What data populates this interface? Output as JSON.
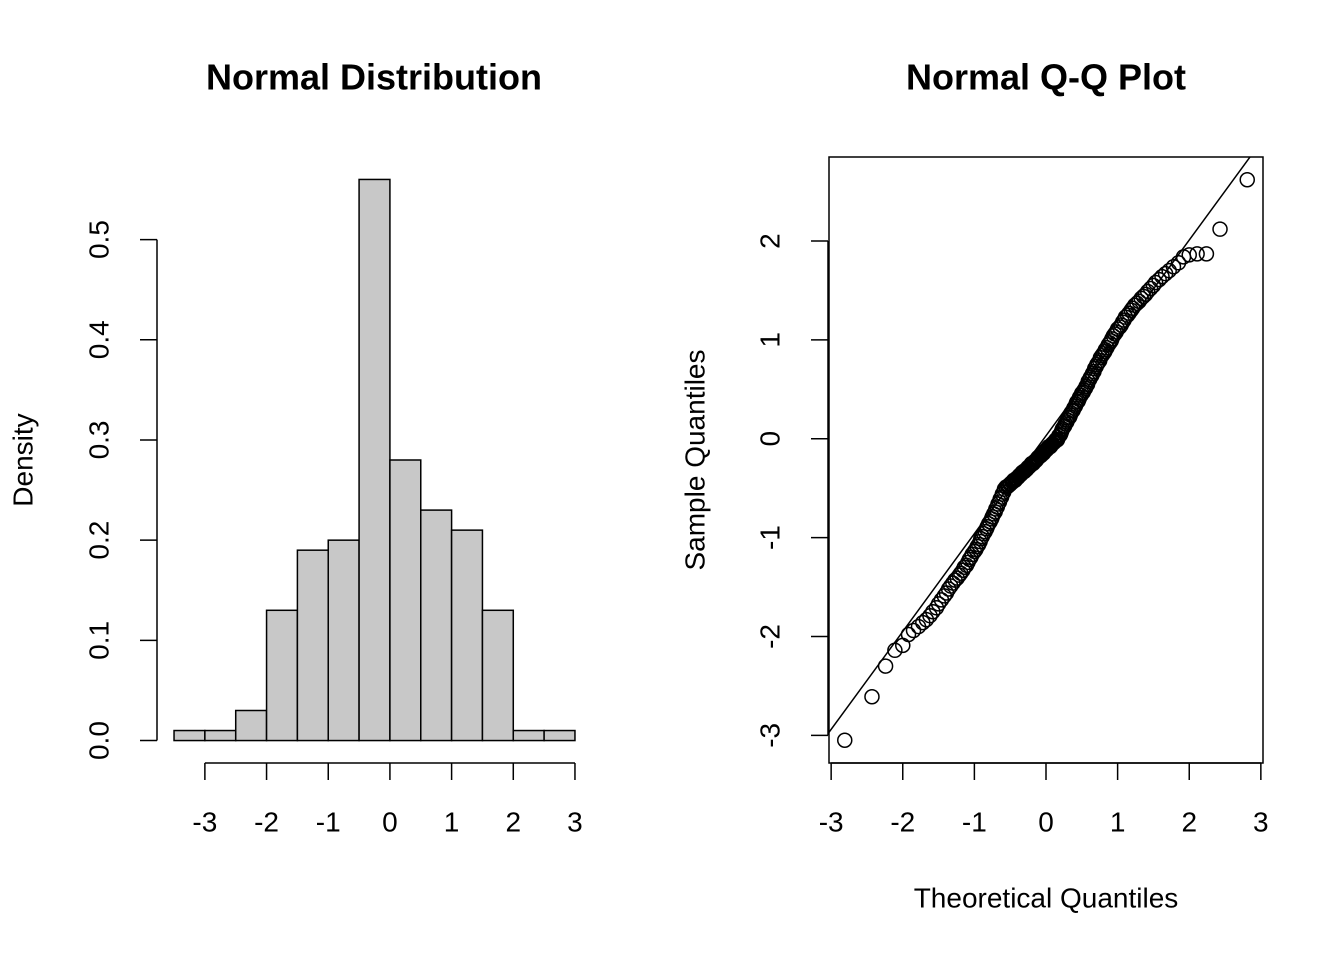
{
  "chart_data": [
    {
      "type": "histogram",
      "title": "Normal Distribution",
      "ylabel": "Density",
      "bins": [
        -3.5,
        -3,
        -2.5,
        -2,
        -1.5,
        -1,
        -0.5,
        0,
        0.5,
        1,
        1.5,
        2,
        2.5,
        3
      ],
      "values": [
        0.01,
        0.01,
        0.03,
        0.13,
        0.19,
        0.2,
        0.56,
        0.28,
        0.23,
        0.21,
        0.13,
        0.01,
        0.01
      ],
      "color": "#c8c8c8",
      "xlim": [
        -3.76,
        3.26
      ],
      "ylim": [
        -0.0224,
        0.5824
      ],
      "xticks": [
        -3,
        -2,
        -1,
        0,
        1,
        2,
        3
      ],
      "yticks": [
        {
          "value": 0,
          "label": "0.0"
        },
        0.1,
        0.2,
        0.3,
        0.4,
        0.5
      ]
    },
    {
      "type": "scatter",
      "title": "Normal Q-Q Plot",
      "xlabel": "Theoretical Quantiles",
      "ylabel": "Sample Quantiles",
      "x": [
        -2.81,
        -2.43,
        -2.24,
        -2.11,
        -2.0,
        -1.92,
        -1.85,
        -1.78,
        -1.72,
        -1.67,
        -1.62,
        -1.58,
        -1.53,
        -1.5,
        -1.46,
        -1.42,
        -1.39,
        -1.36,
        -1.33,
        -1.3,
        -1.27,
        -1.24,
        -1.21,
        -1.19,
        -1.16,
        -1.14,
        -1.11,
        -1.09,
        -1.07,
        -1.05,
        -1.03,
        -1.0,
        -0.98,
        -0.96,
        -0.94,
        -0.92,
        -0.91,
        -0.89,
        -0.87,
        -0.85,
        -0.83,
        -0.82,
        -0.8,
        -0.78,
        -0.76,
        -0.75,
        -0.73,
        -0.71,
        -0.7,
        -0.68,
        -0.67,
        -0.65,
        -0.64,
        -0.62,
        -0.61,
        -0.59,
        -0.58,
        -0.56,
        -0.55,
        -0.53,
        -0.52,
        -0.5,
        -0.49,
        -0.47,
        -0.46,
        -0.45,
        -0.43,
        -0.42,
        -0.41,
        -0.39,
        -0.38,
        -0.37,
        -0.35,
        -0.34,
        -0.33,
        -0.31,
        -0.3,
        -0.29,
        -0.27,
        -0.26,
        -0.25,
        -0.23,
        -0.22,
        -0.21,
        -0.2,
        -0.18,
        -0.17,
        -0.16,
        -0.14,
        -0.13,
        -0.12,
        -0.11,
        -0.09,
        -0.08,
        -0.07,
        -0.06,
        -0.04,
        -0.03,
        -0.02,
        -0.01,
        0.01,
        0.02,
        0.03,
        0.04,
        0.06,
        0.07,
        0.08,
        0.09,
        0.11,
        0.12,
        0.13,
        0.14,
        0.16,
        0.17,
        0.18,
        0.2,
        0.21,
        0.22,
        0.23,
        0.25,
        0.26,
        0.27,
        0.29,
        0.3,
        0.31,
        0.33,
        0.34,
        0.35,
        0.37,
        0.38,
        0.39,
        0.41,
        0.42,
        0.43,
        0.45,
        0.46,
        0.47,
        0.49,
        0.5,
        0.52,
        0.53,
        0.55,
        0.56,
        0.58,
        0.59,
        0.61,
        0.62,
        0.64,
        0.65,
        0.67,
        0.68,
        0.7,
        0.71,
        0.73,
        0.75,
        0.76,
        0.78,
        0.8,
        0.82,
        0.83,
        0.85,
        0.87,
        0.89,
        0.91,
        0.92,
        0.94,
        0.96,
        0.98,
        1.0,
        1.03,
        1.05,
        1.07,
        1.09,
        1.11,
        1.14,
        1.16,
        1.19,
        1.21,
        1.24,
        1.27,
        1.3,
        1.33,
        1.36,
        1.39,
        1.42,
        1.46,
        1.5,
        1.53,
        1.58,
        1.62,
        1.67,
        1.72,
        1.78,
        1.85,
        1.92,
        2.0,
        2.11,
        2.24,
        2.43,
        2.81
      ],
      "values": [
        -3.05,
        -2.61,
        -2.3,
        -2.14,
        -2.09,
        -1.98,
        -1.94,
        -1.9,
        -1.86,
        -1.83,
        -1.79,
        -1.75,
        -1.71,
        -1.67,
        -1.63,
        -1.59,
        -1.56,
        -1.52,
        -1.49,
        -1.46,
        -1.43,
        -1.41,
        -1.38,
        -1.36,
        -1.33,
        -1.3,
        -1.28,
        -1.25,
        -1.22,
        -1.2,
        -1.17,
        -1.14,
        -1.12,
        -1.09,
        -1.07,
        -1.04,
        -1.01,
        -0.99,
        -0.96,
        -0.94,
        -0.91,
        -0.89,
        -0.86,
        -0.84,
        -0.81,
        -0.79,
        -0.76,
        -0.74,
        -0.71,
        -0.69,
        -0.66,
        -0.64,
        -0.61,
        -0.59,
        -0.56,
        -0.54,
        -0.51,
        -0.49,
        -0.49,
        -0.48,
        -0.47,
        -0.46,
        -0.45,
        -0.44,
        -0.43,
        -0.42,
        -0.42,
        -0.41,
        -0.4,
        -0.39,
        -0.38,
        -0.37,
        -0.36,
        -0.35,
        -0.34,
        -0.33,
        -0.33,
        -0.32,
        -0.31,
        -0.3,
        -0.29,
        -0.28,
        -0.27,
        -0.26,
        -0.25,
        -0.25,
        -0.24,
        -0.23,
        -0.22,
        -0.21,
        -0.2,
        -0.19,
        -0.18,
        -0.17,
        -0.17,
        -0.16,
        -0.15,
        -0.14,
        -0.13,
        -0.12,
        -0.11,
        -0.1,
        -0.09,
        -0.08,
        -0.08,
        -0.07,
        -0.06,
        -0.05,
        -0.04,
        -0.03,
        -0.02,
        -0.01,
        -0.01,
        0.01,
        0.03,
        0.04,
        0.06,
        0.08,
        0.1,
        0.12,
        0.13,
        0.15,
        0.17,
        0.19,
        0.21,
        0.22,
        0.24,
        0.26,
        0.28,
        0.29,
        0.31,
        0.33,
        0.35,
        0.37,
        0.38,
        0.4,
        0.42,
        0.44,
        0.46,
        0.47,
        0.49,
        0.51,
        0.53,
        0.55,
        0.58,
        0.6,
        0.62,
        0.64,
        0.66,
        0.68,
        0.71,
        0.73,
        0.75,
        0.77,
        0.79,
        0.82,
        0.84,
        0.86,
        0.88,
        0.9,
        0.92,
        0.95,
        0.97,
        0.99,
        1.01,
        1.04,
        1.06,
        1.08,
        1.11,
        1.13,
        1.15,
        1.18,
        1.2,
        1.23,
        1.25,
        1.27,
        1.3,
        1.32,
        1.35,
        1.37,
        1.39,
        1.42,
        1.44,
        1.46,
        1.49,
        1.52,
        1.55,
        1.58,
        1.61,
        1.64,
        1.67,
        1.7,
        1.74,
        1.78,
        1.84,
        1.86,
        1.87,
        1.87,
        2.12,
        2.62
      ],
      "qq_line": {
        "slope": 0.99,
        "intercept": 0.03
      },
      "xlim": [
        -3.03,
        3.03
      ],
      "ylim": [
        -3.28,
        2.85
      ],
      "xticks": [
        -3,
        -2,
        -1,
        0,
        1,
        2,
        3
      ],
      "yticks": [
        -3,
        -2,
        -1,
        0,
        1,
        2
      ]
    }
  ]
}
